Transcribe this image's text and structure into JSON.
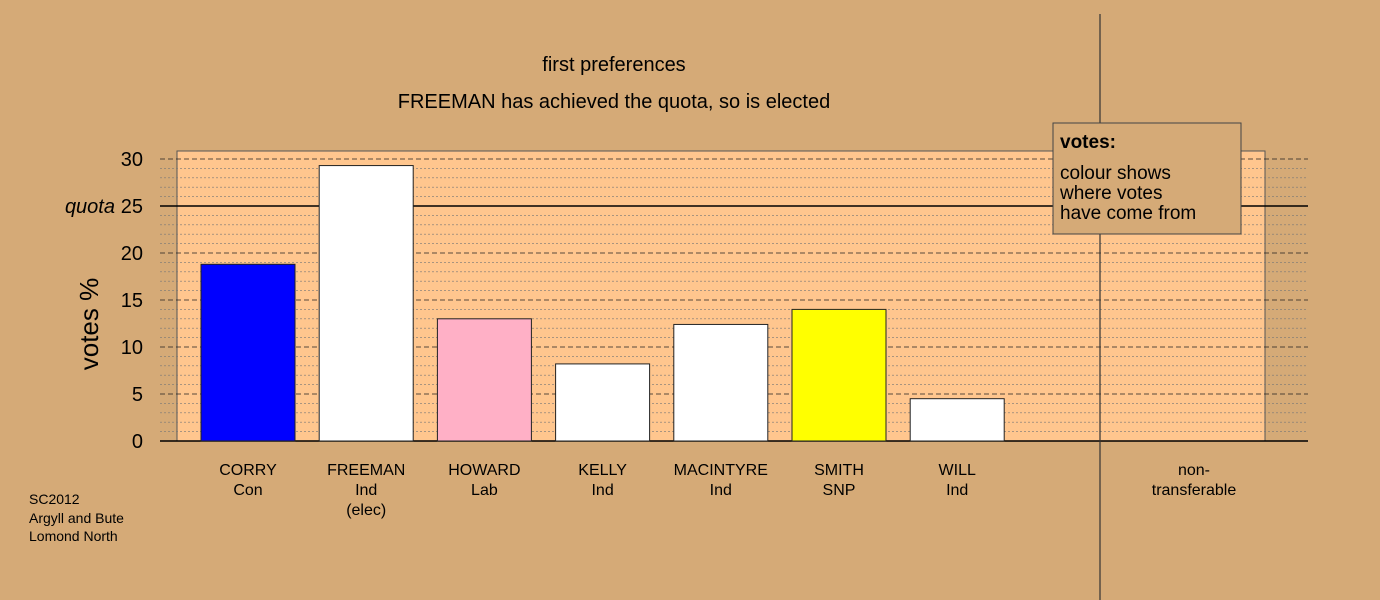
{
  "chart_data": {
    "type": "bar",
    "title": "first preferences",
    "subtitle": "FREEMAN has achieved the quota, so is elected",
    "ylabel": "votes %",
    "ylim": [
      0,
      30
    ],
    "yticks": [
      0,
      5,
      10,
      15,
      20,
      25,
      30
    ],
    "quota": {
      "value": 25,
      "label": "quota"
    },
    "grid": true,
    "categories": [
      {
        "name": "CORRY",
        "party": "Con",
        "note": "",
        "value": 18.8,
        "color": "#0000ff"
      },
      {
        "name": "FREEMAN",
        "party": "Ind",
        "note": "(elec)",
        "value": 29.3,
        "color": "#ffffff"
      },
      {
        "name": "HOWARD",
        "party": "Lab",
        "note": "",
        "value": 13.0,
        "color": "#ffb0c6"
      },
      {
        "name": "KELLY",
        "party": "Ind",
        "note": "",
        "value": 8.2,
        "color": "#ffffff"
      },
      {
        "name": "MACINTYRE",
        "party": "Ind",
        "note": "",
        "value": 12.4,
        "color": "#ffffff"
      },
      {
        "name": "SMITH",
        "party": "SNP",
        "note": "",
        "value": 14.0,
        "color": "#ffff00"
      },
      {
        "name": "WILL",
        "party": "Ind",
        "note": "",
        "value": 4.5,
        "color": "#ffffff"
      }
    ],
    "nontransferable": {
      "line1": "non-",
      "line2": "transferable",
      "value": 0
    },
    "legend": {
      "title": "votes:",
      "lines": [
        "colour shows",
        "where votes",
        "have come from"
      ],
      "placement": "top-right"
    }
  },
  "footer": [
    "SC2012",
    "Argyll and Bute",
    "Lomond North"
  ],
  "colors": {
    "background": "#d5aa77",
    "plot_fill": "#ffc68e",
    "legend_fill": "#d5aa77"
  }
}
